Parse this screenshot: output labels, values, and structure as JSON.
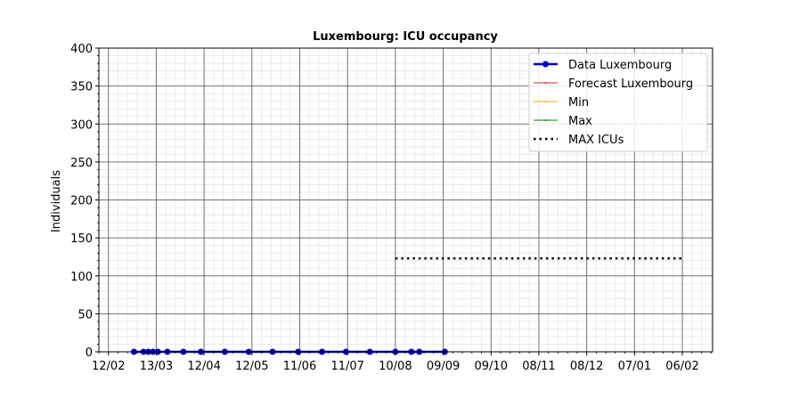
{
  "chart_data": {
    "type": "line",
    "title": "Luxembourg: ICU occupancy",
    "xlabel": "",
    "ylabel": "Individuals",
    "ylim": [
      0,
      400
    ],
    "yticks": [
      0,
      50,
      100,
      150,
      200,
      250,
      300,
      350,
      400
    ],
    "x_is_date": true,
    "xlim": [
      "2020-02-06",
      "2021-02-25"
    ],
    "xticks": [
      {
        "date": "2020-02-12",
        "label": "12/02"
      },
      {
        "date": "2020-03-13",
        "label": "13/03"
      },
      {
        "date": "2020-04-12",
        "label": "12/04"
      },
      {
        "date": "2020-05-12",
        "label": "12/05"
      },
      {
        "date": "2020-06-11",
        "label": "11/06"
      },
      {
        "date": "2020-07-11",
        "label": "11/07"
      },
      {
        "date": "2020-08-10",
        "label": "10/08"
      },
      {
        "date": "2020-09-09",
        "label": "09/09"
      },
      {
        "date": "2020-10-09",
        "label": "09/10"
      },
      {
        "date": "2020-11-08",
        "label": "08/11"
      },
      {
        "date": "2020-12-08",
        "label": "08/12"
      },
      {
        "date": "2021-01-07",
        "label": "07/01"
      },
      {
        "date": "2021-02-06",
        "label": "06/02"
      }
    ],
    "grid": true,
    "legend_position": "top-right",
    "series": [
      {
        "name": "Data Luxembourg",
        "color": "#0000cc",
        "style": "line-markers",
        "points": [
          {
            "date": "2020-02-28",
            "value": 0
          },
          {
            "date": "2020-03-05",
            "value": 0
          },
          {
            "date": "2020-03-08",
            "value": 0
          },
          {
            "date": "2020-03-11",
            "value": 0
          },
          {
            "date": "2020-03-14",
            "value": 0
          },
          {
            "date": "2020-03-20",
            "value": 0
          },
          {
            "date": "2020-03-30",
            "value": 0
          },
          {
            "date": "2020-04-10",
            "value": 0
          },
          {
            "date": "2020-04-25",
            "value": 0
          },
          {
            "date": "2020-05-10",
            "value": 0
          },
          {
            "date": "2020-05-25",
            "value": 0
          },
          {
            "date": "2020-06-10",
            "value": 0
          },
          {
            "date": "2020-06-25",
            "value": 0
          },
          {
            "date": "2020-07-10",
            "value": 0
          },
          {
            "date": "2020-07-25",
            "value": 0
          },
          {
            "date": "2020-08-10",
            "value": 0
          },
          {
            "date": "2020-08-20",
            "value": 0
          },
          {
            "date": "2020-08-25",
            "value": 0
          },
          {
            "date": "2020-09-10",
            "value": 0
          }
        ]
      },
      {
        "name": "Forecast Luxembourg",
        "color": "#d62728",
        "style": "line",
        "points": [
          {
            "date": "2020-09-11",
            "value": 0
          },
          {
            "date": "2021-02-06",
            "value": 0
          }
        ]
      },
      {
        "name": "Min",
        "color": "#ffa500",
        "style": "line",
        "points": [
          {
            "date": "2020-09-11",
            "value": 0
          },
          {
            "date": "2021-02-06",
            "value": 0
          }
        ]
      },
      {
        "name": "Max",
        "color": "#008000",
        "style": "line",
        "points": [
          {
            "date": "2020-09-11",
            "value": 0
          },
          {
            "date": "2021-02-06",
            "value": 0
          }
        ]
      },
      {
        "name": "MAX ICUs",
        "color": "#000000",
        "style": "dotted",
        "points": [
          {
            "date": "2020-08-10",
            "value": 123
          },
          {
            "date": "2021-02-06",
            "value": 123
          }
        ]
      }
    ]
  }
}
